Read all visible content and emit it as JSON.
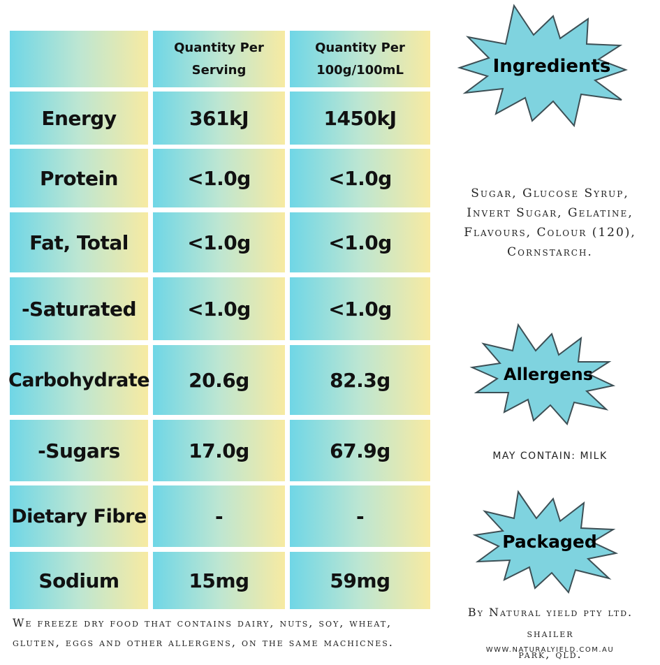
{
  "table": {
    "headers": [
      "",
      "Quantity Per Serving",
      "Quantity Per 100g/100mL"
    ],
    "rows": [
      {
        "label": "Energy",
        "serving": "361kJ",
        "per100": "1450kJ"
      },
      {
        "label": "Protein",
        "serving": "<1.0g",
        "per100": "<1.0g"
      },
      {
        "label": "Fat, Total",
        "serving": "<1.0g",
        "per100": "<1.0g"
      },
      {
        "label": "-Saturated",
        "serving": "<1.0g",
        "per100": "<1.0g"
      },
      {
        "label": "Carbohydrate",
        "serving": "20.6g",
        "per100": "82.3g"
      },
      {
        "label": "-Sugars",
        "serving": "17.0g",
        "per100": "67.9g"
      },
      {
        "label": "Dietary Fibre",
        "serving": "-",
        "per100": "-"
      },
      {
        "label": "Sodium",
        "serving": "15mg",
        "per100": "59mg"
      }
    ]
  },
  "footnote": {
    "line1": "We freeze dry food that contains dairy, nuts, soy, wheat,",
    "line2": "gluten, eggs and other allergens, on the same machicnes."
  },
  "ingredients": {
    "title": "Ingredients",
    "lines": [
      "Sugar, Glucose Syrup,",
      "Invert Sugar, Gelatine,",
      "Flavours, Colour (120),",
      "Cornstarch."
    ]
  },
  "allergens": {
    "title": "Allergens",
    "text": "may contain: milk"
  },
  "packaged": {
    "title": "Packaged",
    "line1": "By Natural yield pty ltd.  shailer",
    "line2": "park, qld.",
    "website": "www.naturalyield.com.au"
  },
  "colors": {
    "gradient_left": "#6fd6e6",
    "gradient_right": "#f7eaa2",
    "badge_fill": "#7fd3df",
    "badge_stroke": "#3d4f55"
  }
}
